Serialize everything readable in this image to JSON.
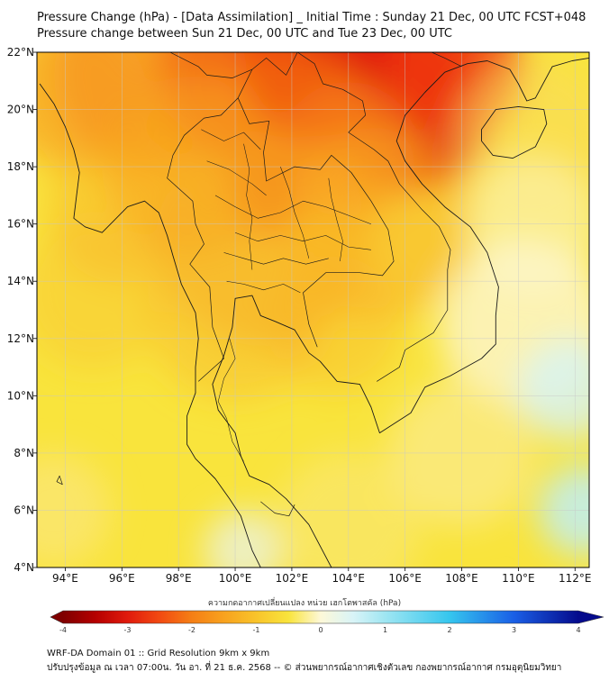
{
  "header": {
    "title_line1": "Pressure Change (hPa) - [Data Assimilation] _ Initial Time : Sunday 21 Dec, 00 UTC FCST+048",
    "title_line2": "Pressure change between Sun 21 Dec, 00 UTC and Tue 23 Dec, 00 UTC"
  },
  "map": {
    "lon_range": [
      93,
      112.5
    ],
    "lat_range": [
      4,
      22
    ],
    "lon_ticks": [
      {
        "value": 94,
        "label": "94°E"
      },
      {
        "value": 96,
        "label": "96°E"
      },
      {
        "value": 98,
        "label": "98°E"
      },
      {
        "value": 100,
        "label": "100°E"
      },
      {
        "value": 102,
        "label": "102°E"
      },
      {
        "value": 104,
        "label": "104°E"
      },
      {
        "value": 106,
        "label": "106°E"
      },
      {
        "value": 108,
        "label": "108°E"
      },
      {
        "value": 110,
        "label": "110°E"
      },
      {
        "value": 112,
        "label": "112°E"
      }
    ],
    "lat_ticks": [
      {
        "value": 22,
        "label": "22°N"
      },
      {
        "value": 20,
        "label": "20°N"
      },
      {
        "value": 18,
        "label": "18°N"
      },
      {
        "value": 16,
        "label": "16°N"
      },
      {
        "value": 14,
        "label": "14°N"
      },
      {
        "value": 12,
        "label": "12°N"
      },
      {
        "value": 10,
        "label": "10°N"
      },
      {
        "value": 8,
        "label": "8°N"
      },
      {
        "value": 6,
        "label": "6°N"
      },
      {
        "value": 4,
        "label": "4°N"
      }
    ],
    "background_color": "#f9e43c",
    "field_blobs": [
      {
        "lon": 101.5,
        "lat": 21.2,
        "r": 3.6,
        "color": "#e01a0c",
        "alpha": 0.95
      },
      {
        "lon": 104.5,
        "lat": 21.3,
        "r": 3.0,
        "color": "#e01a0c",
        "alpha": 0.95
      },
      {
        "lon": 106.3,
        "lat": 20.0,
        "r": 2.8,
        "color": "#e01a0c",
        "alpha": 0.95
      },
      {
        "lon": 99.8,
        "lat": 21.4,
        "r": 2.6,
        "color": "#f03a10",
        "alpha": 0.85
      },
      {
        "lon": 107.8,
        "lat": 21.5,
        "r": 2.4,
        "color": "#f03a10",
        "alpha": 0.85
      },
      {
        "lon": 102.0,
        "lat": 19.5,
        "r": 2.8,
        "color": "#f36a12",
        "alpha": 0.8
      },
      {
        "lon": 101.2,
        "lat": 17.0,
        "r": 1.4,
        "color": "#f05a12",
        "alpha": 0.85
      },
      {
        "lon": 104.0,
        "lat": 18.6,
        "r": 2.4,
        "color": "#f57f15",
        "alpha": 0.75
      },
      {
        "lon": 97.0,
        "lat": 21.2,
        "r": 3.4,
        "color": "#f78a18",
        "alpha": 0.7
      },
      {
        "lon": 94.3,
        "lat": 20.5,
        "r": 2.6,
        "color": "#f89620",
        "alpha": 0.6
      },
      {
        "lon": 98.5,
        "lat": 18.0,
        "r": 3.2,
        "color": "#f8a21e",
        "alpha": 0.6
      },
      {
        "lon": 101.0,
        "lat": 15.5,
        "r": 3.8,
        "color": "#f8a820",
        "alpha": 0.55
      },
      {
        "lon": 105.0,
        "lat": 16.0,
        "r": 3.4,
        "color": "#f9b024",
        "alpha": 0.55
      },
      {
        "lon": 96.0,
        "lat": 16.5,
        "r": 2.6,
        "color": "#f9b024",
        "alpha": 0.45
      },
      {
        "lon": 100.0,
        "lat": 13.0,
        "r": 3.2,
        "color": "#f9b52a",
        "alpha": 0.45
      },
      {
        "lon": 103.5,
        "lat": 12.5,
        "r": 2.4,
        "color": "#f9b52a",
        "alpha": 0.4
      },
      {
        "lon": 95.0,
        "lat": 13.5,
        "r": 2.6,
        "color": "#f9be2e",
        "alpha": 0.4
      },
      {
        "lon": 110.5,
        "lat": 19.0,
        "r": 2.8,
        "color": "#fadc5a",
        "alpha": 0.6
      },
      {
        "lon": 110.5,
        "lat": 16.0,
        "r": 2.4,
        "color": "#fbf0a6",
        "alpha": 0.75
      },
      {
        "lon": 110.2,
        "lat": 12.5,
        "r": 3.0,
        "color": "#fdf6d0",
        "alpha": 0.8
      },
      {
        "lon": 111.8,
        "lat": 10.2,
        "r": 1.8,
        "color": "#d6f2f6",
        "alpha": 0.8
      },
      {
        "lon": 112.3,
        "lat": 6.0,
        "r": 1.6,
        "color": "#bfeef5",
        "alpha": 0.85
      },
      {
        "lon": 108.0,
        "lat": 8.0,
        "r": 2.6,
        "color": "#fbec9c",
        "alpha": 0.6
      },
      {
        "lon": 100.3,
        "lat": 4.6,
        "r": 1.4,
        "color": "#e9f3e8",
        "alpha": 0.75
      },
      {
        "lon": 93.6,
        "lat": 6.0,
        "r": 2.0,
        "color": "#fbe88a",
        "alpha": 0.55
      },
      {
        "lon": 104.0,
        "lat": 5.5,
        "r": 2.6,
        "color": "#fbe88a",
        "alpha": 0.45
      }
    ]
  },
  "colorbar": {
    "title": "ความกดอากาศเปลี่ยนแปลง หน่วย เฮกโตพาสคัล (hPa)",
    "min": -4,
    "max": 4,
    "ticks": [
      {
        "value": -4,
        "label": "-4"
      },
      {
        "value": -3,
        "label": "-3"
      },
      {
        "value": -2,
        "label": "-2"
      },
      {
        "value": -1,
        "label": "-1"
      },
      {
        "value": 0,
        "label": "0"
      },
      {
        "value": 1,
        "label": "1"
      },
      {
        "value": 2,
        "label": "2"
      },
      {
        "value": 3,
        "label": "3"
      },
      {
        "value": 4,
        "label": "4"
      }
    ],
    "stops": [
      {
        "value": -4,
        "color": "#7f0000"
      },
      {
        "value": -3.5,
        "color": "#b50000"
      },
      {
        "value": -3,
        "color": "#e01a0c"
      },
      {
        "value": -2.5,
        "color": "#f24a12"
      },
      {
        "value": -2,
        "color": "#f57f15"
      },
      {
        "value": -1.5,
        "color": "#f8a21e"
      },
      {
        "value": -1,
        "color": "#f9c42a"
      },
      {
        "value": -0.5,
        "color": "#f9e43c"
      },
      {
        "value": 0,
        "color": "#fdf8d8"
      },
      {
        "value": 0.5,
        "color": "#d9f4f7"
      },
      {
        "value": 1,
        "color": "#9fe6f2"
      },
      {
        "value": 2,
        "color": "#35c6ee"
      },
      {
        "value": 3,
        "color": "#1a5fe6"
      },
      {
        "value": 4,
        "color": "#050b8c"
      }
    ]
  },
  "footer": {
    "line1": "WRF-DA Domain 01 :: Grid Resolution 9km x 9km",
    "line2": "ปรับปรุงข้อมูล ณ เวลา 07:00น. วัน อา. ที่ 21 ธ.ค. 2568 -- © ส่วนพยากรณ์อากาศเชิงตัวเลข กองพยากรณ์อากาศ กรมอุตุนิยมวิทยา"
  }
}
